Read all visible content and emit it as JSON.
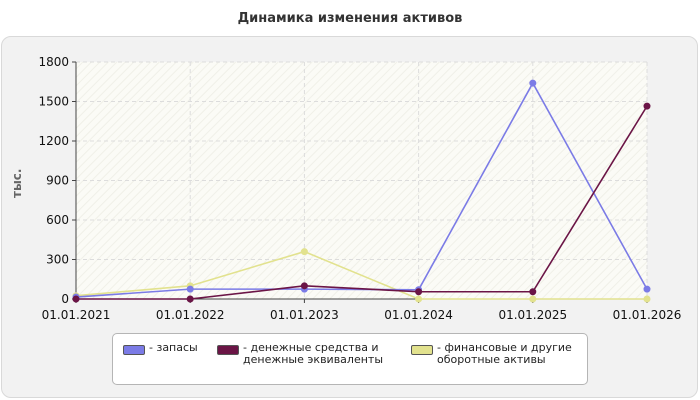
{
  "chart_data": {
    "type": "line",
    "title": "Динамика изменения активов",
    "ylabel": "тыс.",
    "xlabel": "",
    "categories": [
      "01.01.2021",
      "01.01.2022",
      "01.01.2023",
      "01.01.2024",
      "01.01.2025",
      "01.01.2026"
    ],
    "ylim": [
      0,
      1800
    ],
    "yticks": [
      0,
      300,
      600,
      900,
      1200,
      1500,
      1800
    ],
    "grid": true,
    "legend_position": "bottom",
    "series": [
      {
        "name": "- запасы",
        "color": "#7b7be6",
        "values": [
          15,
          75,
          75,
          70,
          1640,
          75
        ]
      },
      {
        "name": "- денежные средства и\nденежные эквиваленты",
        "color": "#6b1546",
        "values": [
          0,
          0,
          100,
          55,
          55,
          1465
        ]
      },
      {
        "name": "- финансовые и другие\nоборотные активы",
        "color": "#e2e28e",
        "values": [
          25,
          100,
          360,
          0,
          0,
          0
        ]
      }
    ]
  }
}
